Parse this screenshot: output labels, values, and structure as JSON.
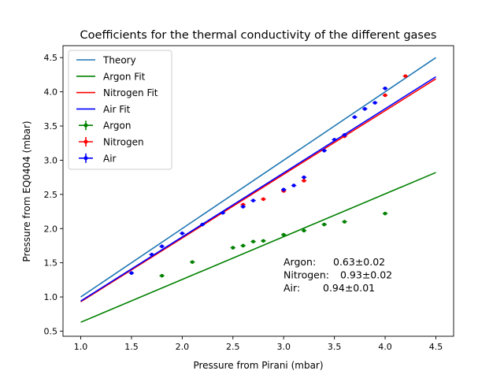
{
  "chart_data": {
    "type": "scatter",
    "title": "Coefficients for the thermal conductivity of the different gases",
    "xlabel": "Pressure from Pirani (mbar)",
    "ylabel": "Pressure from EQ0404 (mbar)",
    "xlim": [
      0.825,
      4.675
    ],
    "ylim": [
      0.425,
      4.675
    ],
    "xticks": [
      1.0,
      1.5,
      2.0,
      2.5,
      3.0,
      3.5,
      4.0,
      4.5
    ],
    "xtick_labels": [
      "1.0",
      "1.5",
      "2.0",
      "2.5",
      "3.0",
      "3.5",
      "4.0",
      "4.5"
    ],
    "yticks": [
      0.5,
      1.0,
      1.5,
      2.0,
      2.5,
      3.0,
      3.5,
      4.0,
      4.5
    ],
    "ytick_labels": [
      "0.5",
      "1.0",
      "1.5",
      "2.0",
      "2.5",
      "3.0",
      "3.5",
      "4.0",
      "4.5"
    ],
    "grid": false,
    "legend": "upper-left",
    "lines": [
      {
        "name": "Theory",
        "color": "#1f77b4",
        "x": [
          1.0,
          4.5
        ],
        "y": [
          1.0,
          4.5
        ]
      },
      {
        "name": "Argon Fit",
        "color": "#008000",
        "x": [
          1.0,
          4.5
        ],
        "y": [
          0.63,
          2.82
        ]
      },
      {
        "name": "Nitrogen Fit",
        "color": "#ff0000",
        "x": [
          1.0,
          4.5
        ],
        "y": [
          0.93,
          4.19
        ]
      },
      {
        "name": "Air Fit",
        "color": "#0000ff",
        "x": [
          1.0,
          4.5
        ],
        "y": [
          0.94,
          4.22
        ]
      }
    ],
    "series": [
      {
        "name": "Argon",
        "color": "#008000",
        "x": [
          1.8,
          2.1,
          2.5,
          2.6,
          2.7,
          2.8,
          3.0,
          3.2,
          3.4,
          3.6,
          4.0
        ],
        "y": [
          1.31,
          1.51,
          1.72,
          1.75,
          1.81,
          1.82,
          1.91,
          1.97,
          2.06,
          2.1,
          2.22
        ]
      },
      {
        "name": "Nitrogen",
        "color": "#ff0000",
        "x": [
          2.6,
          2.8,
          3.0,
          3.2,
          3.6,
          4.0,
          4.2
        ],
        "y": [
          2.35,
          2.43,
          2.55,
          2.7,
          3.35,
          3.95,
          4.23
        ]
      },
      {
        "name": "Air",
        "color": "#0000ff",
        "x": [
          1.5,
          1.7,
          1.8,
          2.0,
          2.2,
          2.4,
          2.6,
          2.7,
          3.0,
          3.1,
          3.2,
          3.4,
          3.5,
          3.6,
          3.7,
          3.8,
          3.9,
          4.0
        ],
        "y": [
          1.35,
          1.62,
          1.74,
          1.93,
          2.06,
          2.23,
          2.32,
          2.41,
          2.57,
          2.63,
          2.75,
          3.14,
          3.3,
          3.37,
          3.63,
          3.75,
          3.84,
          4.05
        ]
      }
    ],
    "annotation_lines": [
      {
        "label": "Argon:",
        "value": "0.63±0.02"
      },
      {
        "label": "Nitrogen:",
        "value": "0.93±0.02"
      },
      {
        "label": "Air:",
        "value": "0.94±0.01"
      }
    ]
  }
}
